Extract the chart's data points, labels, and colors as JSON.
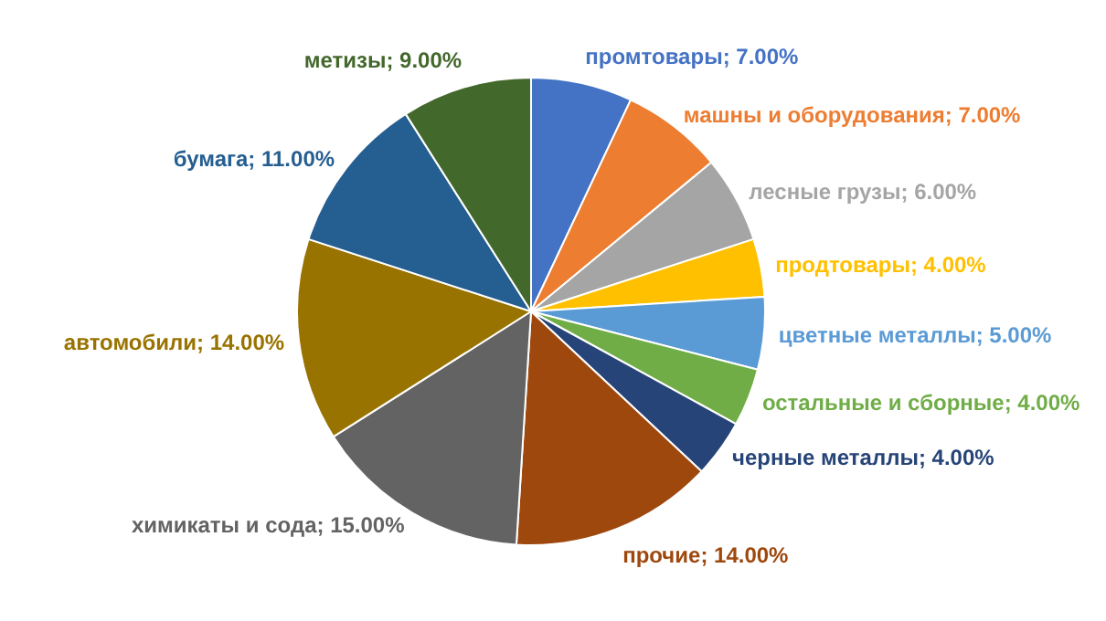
{
  "chart_data": {
    "type": "pie",
    "categories": [
      "промтовары",
      "машны и оборудования",
      "лесные грузы",
      "продтовары",
      "цветные металлы",
      "остальные и сборные",
      "черные металлы",
      "прочие",
      "химикаты и сода",
      "автомобили",
      "бумага",
      "метизы"
    ],
    "values": [
      7,
      7,
      6,
      4,
      5,
      4,
      4,
      14,
      15,
      14,
      11,
      9
    ],
    "colors": [
      "#4472c4",
      "#ed7d31",
      "#a5a5a5",
      "#ffc000",
      "#5b9bd5",
      "#70ad47",
      "#264478",
      "#9e480e",
      "#636363",
      "#997300",
      "#255e91",
      "#43682b"
    ],
    "value_labels": [
      "7.00%",
      "7.00%",
      "6.00%",
      "4.00%",
      "5.00%",
      "4.00%",
      "4.00%",
      "14.00%",
      "15.00%",
      "14.00%",
      "11.00%",
      "9.00%"
    ]
  }
}
